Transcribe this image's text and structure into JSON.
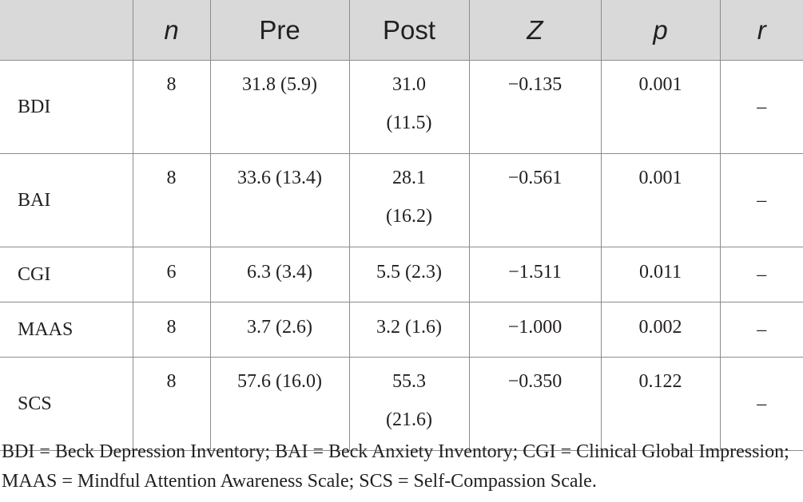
{
  "table": {
    "headers": [
      "",
      "n",
      "Pre",
      "Post",
      "Z",
      "p",
      "r"
    ],
    "rows": [
      {
        "measure": "BDI",
        "n": "8",
        "pre": "31.8 (5.9)",
        "post": "31.0 (11.5)",
        "z": "−0.135",
        "p": "0.001",
        "r": "–"
      },
      {
        "measure": "BAI",
        "n": "8",
        "pre": "33.6 (13.4)",
        "post": "28.1 (16.2)",
        "z": "−0.561",
        "p": "0.001",
        "r": "–"
      },
      {
        "measure": "CGI",
        "n": "6",
        "pre": "6.3 (3.4)",
        "post": "5.5 (2.3)",
        "z": "−1.511",
        "p": "0.011",
        "r": "–"
      },
      {
        "measure": "MAAS",
        "n": "8",
        "pre": "3.7 (2.6)",
        "post": "3.2 (1.6)",
        "z": "−1.000",
        "p": "0.002",
        "r": "–"
      },
      {
        "measure": "SCS",
        "n": "8",
        "pre": "57.6 (16.0)",
        "post": "55.3 (21.6)",
        "z": "−0.350",
        "p": "0.122",
        "r": "–"
      }
    ]
  },
  "footnote": "BDI = Beck Depression Inventory; BAI = Beck Anxiety Inventory; CGI = Clinical Global Impression; MAAS = Mindful Attention Awareness Scale; SCS = Self-Compassion Scale."
}
